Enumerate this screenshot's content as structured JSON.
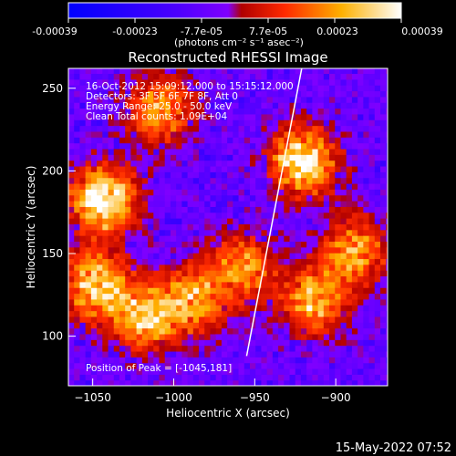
{
  "colorbar": {
    "tick_labels": [
      "-0.00039",
      "-0.00023",
      "-7.7e-05",
      "7.7e-05",
      "0.00023",
      "0.00039"
    ],
    "unit_label": "(photons cm⁻² s⁻¹ asec⁻²)"
  },
  "chart_data": {
    "type": "heatmap",
    "title": "Reconstructed RHESSI Image",
    "xlabel": "Heliocentric X (arcsec)",
    "ylabel": "Heliocentric Y (arcsec)",
    "xlim": [
      -1065,
      -868
    ],
    "ylim": [
      70,
      262
    ],
    "x_ticks": [
      -1050,
      -1000,
      -950,
      -900
    ],
    "y_ticks": [
      100,
      150,
      200,
      250
    ],
    "colorbar_range": [
      -0.00039,
      0.00039
    ],
    "annotations": [
      "16-Oct-2012 15:09:12.000 to 15:15:12.000",
      "Detectors: 3F 5F 6F 7F 8F, Att 0",
      "Energy Range: 25.0 - 50.0 keV",
      "Clean     Total counts: 1.09E+04"
    ],
    "peak_label": "Position of Peak = [-1045,181]",
    "peak": [
      -1045,
      181
    ],
    "limb_line": {
      "x": [
        -955,
        -921
      ],
      "y": [
        88,
        262
      ]
    },
    "bright_sources": [
      {
        "x": -1045,
        "y": 181,
        "level": 1.0
      },
      {
        "x": -922,
        "y": 205,
        "level": 0.95
      },
      {
        "x": -1050,
        "y": 130,
        "level": 0.8
      },
      {
        "x": -1020,
        "y": 110,
        "level": 0.75
      },
      {
        "x": -990,
        "y": 120,
        "level": 0.65
      },
      {
        "x": -960,
        "y": 140,
        "level": 0.6
      },
      {
        "x": -915,
        "y": 120,
        "level": 0.7
      },
      {
        "x": -890,
        "y": 150,
        "level": 0.65
      },
      {
        "x": -1010,
        "y": 235,
        "level": 0.65
      }
    ]
  },
  "footer": {
    "timestamp": "15-May-2022 07:52"
  }
}
